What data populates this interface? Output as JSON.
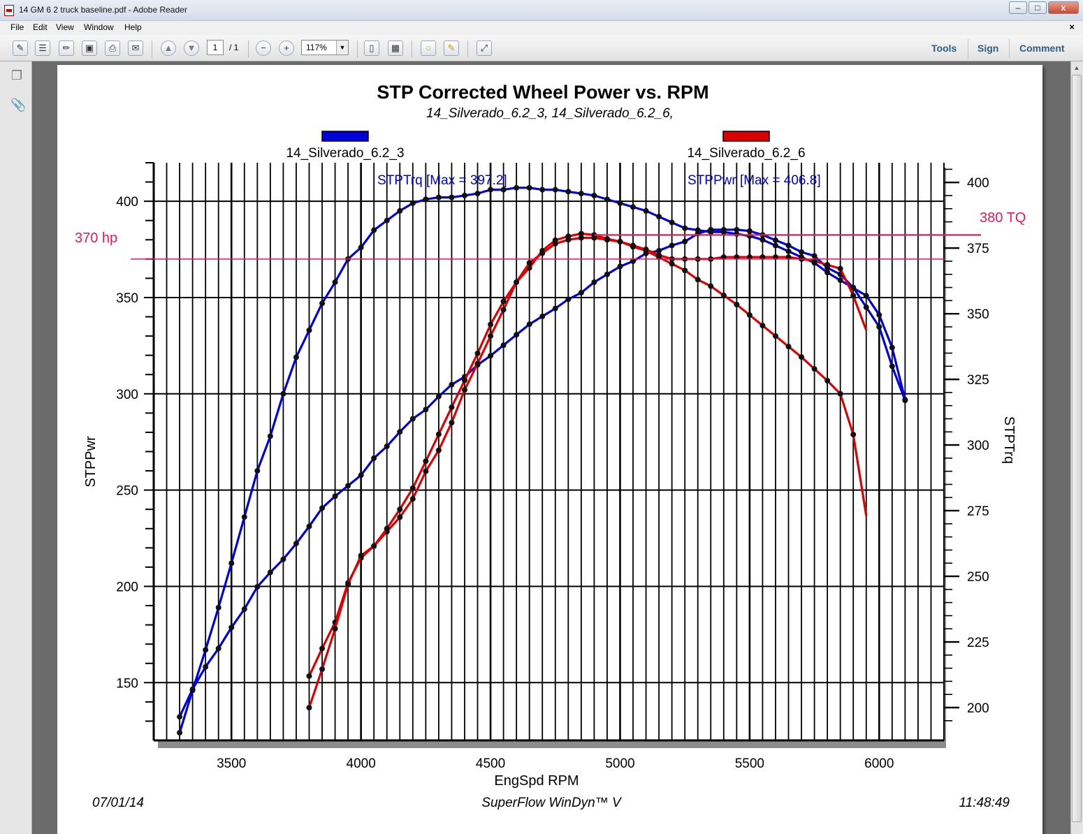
{
  "window": {
    "title": "14 GM 6 2 truck baseline.pdf - Adobe Reader",
    "min_label": "–",
    "max_label": "□",
    "close_label": "x"
  },
  "menu": {
    "items": [
      "File",
      "Edit",
      "View",
      "Window",
      "Help"
    ],
    "doc_close": "×"
  },
  "toolbar": {
    "page_current": "1",
    "page_total": "/ 1",
    "zoom": "117%",
    "links": [
      "Tools",
      "Sign",
      "Comment"
    ]
  },
  "icons": [
    "create-pdf-icon",
    "print-icon",
    "save-icon",
    "email-icon",
    "prev-page-icon",
    "next-page-icon",
    "zoom-out-icon",
    "zoom-in-icon",
    "fit-page-icon",
    "comment-icon",
    "highlight-icon",
    "fullscreen-icon",
    "pages-panel-icon",
    "attachments-icon"
  ],
  "colors": {
    "series_blue": "#0000dd",
    "series_red": "#dd0000",
    "annotation": "#e8185a",
    "marker": "#111111"
  },
  "chart_data": {
    "type": "line",
    "title": "STP Corrected Wheel Power vs. RPM",
    "subtitle": "14_Silverado_6.2_3, 14_Silverado_6.2_6,",
    "xlabel": "EngSpd RPM",
    "ylabel_left": "STPPwr",
    "ylabel_right": "STPTrq",
    "xlim": [
      3200,
      6250
    ],
    "ylim_left": [
      120,
      420
    ],
    "ylim_right": [
      187.5,
      407.5
    ],
    "x_ticks": [
      3500,
      4000,
      4500,
      5000,
      5500,
      6000
    ],
    "y_ticks_left": [
      150,
      200,
      250,
      300,
      350,
      400
    ],
    "y_ticks_right": [
      200,
      225,
      250,
      275,
      300,
      325,
      350,
      375,
      400
    ],
    "legend": [
      {
        "name": "14_Silverado_6.2_3",
        "color": "#0000dd"
      },
      {
        "name": "14_Silverado_6.2_6",
        "color": "#dd0000"
      }
    ],
    "annotations": {
      "trq_max": "STPTrq [Max = 397.2]",
      "pwr_max": "STPPwr [Max = 406.8]",
      "hp_line_label": "370 hp",
      "tq_line_label": "380 TQ",
      "hp_line_value": 370,
      "tq_line_value": 380
    },
    "series": [
      {
        "name": "14_Silverado_6.2_3",
        "quantity": "STPTrq",
        "axis": "right",
        "color": "#0000dd",
        "x": [
          3300,
          3350,
          3400,
          3450,
          3500,
          3550,
          3600,
          3650,
          3700,
          3750,
          3800,
          3850,
          3900,
          3950,
          4000,
          4050,
          4100,
          4150,
          4200,
          4250,
          4300,
          4350,
          4400,
          4450,
          4500,
          4550,
          4600,
          4650,
          4700,
          4750,
          4800,
          4850,
          4900,
          4950,
          5000,
          5050,
          5100,
          5150,
          5200,
          5250,
          5300,
          5350,
          5400,
          5450,
          5500,
          5550,
          5600,
          5650,
          5700,
          5750,
          5800,
          5850,
          5900,
          5950,
          6000,
          6050,
          6100
        ],
        "y": [
          196.5,
          207,
          215.5,
          222.5,
          230.5,
          237.5,
          246,
          251.5,
          256.5,
          262.5,
          269,
          276,
          280.5,
          284.5,
          288.5,
          295,
          299.5,
          305,
          310,
          313.5,
          318.5,
          323,
          326,
          330.5,
          334,
          338,
          342,
          346,
          349,
          352,
          355.5,
          358,
          362,
          365,
          368,
          370,
          373,
          374,
          376,
          377.5,
          380.5,
          382,
          382,
          382,
          381.5,
          380,
          378,
          376,
          373.5,
          372,
          367.5,
          365,
          360,
          352.5,
          345,
          330,
          317
        ]
      },
      {
        "name": "14_Silverado_6.2_3",
        "quantity": "STPPwr",
        "axis": "left",
        "color": "#0000dd",
        "x": [
          3300,
          3350,
          3400,
          3450,
          3500,
          3550,
          3600,
          3650,
          3700,
          3750,
          3800,
          3850,
          3900,
          3950,
          4000,
          4050,
          4100,
          4150,
          4200,
          4250,
          4300,
          4350,
          4400,
          4450,
          4500,
          4550,
          4600,
          4650,
          4700,
          4750,
          4800,
          4850,
          4900,
          4950,
          5000,
          5050,
          5100,
          5150,
          5200,
          5250,
          5300,
          5350,
          5400,
          5450,
          5500,
          5550,
          5600,
          5650,
          5700,
          5750,
          5800,
          5850,
          5900,
          5950,
          6000,
          6050,
          6100
        ],
        "y": [
          124,
          146,
          167,
          189,
          212,
          236,
          260,
          278,
          300,
          319,
          333,
          347,
          358,
          370,
          376,
          385,
          390,
          395,
          399,
          401,
          402,
          402,
          403,
          404,
          406,
          406,
          407,
          407,
          406,
          406,
          405,
          404,
          403,
          401,
          399,
          397,
          395,
          392,
          389,
          386,
          385,
          384,
          384,
          383,
          382,
          380,
          377,
          374,
          371,
          368,
          363,
          359,
          355,
          351,
          341,
          324,
          297
        ]
      },
      {
        "name": "14_Silverado_6.2_6",
        "quantity": "STPTrq",
        "axis": "right",
        "color": "#dd0000",
        "x": [
          3800,
          3850,
          3900,
          3950,
          4000,
          4050,
          4100,
          4150,
          4200,
          4250,
          4300,
          4350,
          4400,
          4450,
          4500,
          4550,
          4600,
          4650,
          4700,
          4750,
          4800,
          4850,
          4900,
          4950,
          5000,
          5050,
          5100,
          5150,
          5200,
          5250,
          5300,
          5350,
          5400,
          5450,
          5500,
          5550,
          5600,
          5650,
          5700,
          5750,
          5800,
          5850,
          5900,
          5950
        ],
        "y": [
          212,
          222.5,
          232.5,
          247.5,
          257,
          261.5,
          267,
          272.5,
          279.5,
          290,
          298,
          308.5,
          321,
          331,
          341.5,
          351.5,
          362,
          367.5,
          374,
          378,
          379.5,
          380.5,
          380,
          378.5,
          377.5,
          375.5,
          374,
          371.5,
          369,
          366.5,
          363,
          360.5,
          357,
          353.5,
          349.5,
          345.5,
          341.5,
          337.5,
          333.5,
          329,
          324.5,
          319.5,
          304,
          273
        ]
      },
      {
        "name": "14_Silverado_6.2_6",
        "quantity": "STPPwr",
        "axis": "left",
        "color": "#dd0000",
        "x": [
          3800,
          3850,
          3900,
          3950,
          4000,
          4050,
          4100,
          4150,
          4200,
          4250,
          4300,
          4350,
          4400,
          4450,
          4500,
          4550,
          4600,
          4650,
          4700,
          4750,
          4800,
          4850,
          4900,
          4950,
          5000,
          5050,
          5100,
          5150,
          5200,
          5250,
          5300,
          5350,
          5400,
          5450,
          5500,
          5550,
          5600,
          5650,
          5700,
          5750,
          5800,
          5850,
          5900,
          5950
        ],
        "y": [
          137,
          157,
          178,
          201,
          216,
          221,
          230,
          240,
          251,
          265,
          279,
          293,
          307,
          321,
          336,
          348,
          358,
          368,
          373,
          378,
          380,
          381,
          381,
          380,
          379,
          377,
          375,
          372,
          370,
          370,
          370,
          370,
          371,
          371,
          371,
          371,
          371,
          371,
          370,
          369,
          367,
          365,
          351,
          333
        ]
      }
    ],
    "footer": {
      "date": "07/01/14",
      "center": "SuperFlow WinDyn™ V",
      "time": "11:48:49"
    },
    "grid": true,
    "legend_placement": "top"
  }
}
